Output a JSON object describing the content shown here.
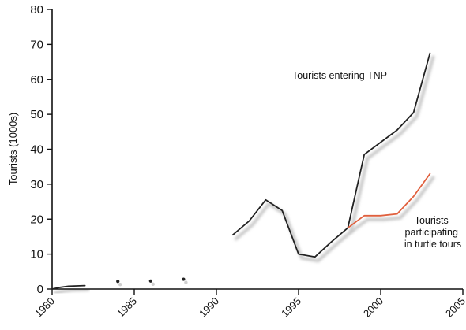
{
  "chart_data": {
    "type": "line",
    "ylabel": "Tourists (1000s)",
    "xlabel": "",
    "xlim": [
      1980,
      2005
    ],
    "ylim": [
      0,
      80
    ],
    "x_ticks": [
      1980,
      1985,
      1990,
      1995,
      2000,
      2005
    ],
    "y_ticks": [
      0,
      10,
      20,
      30,
      40,
      50,
      60,
      70,
      80
    ],
    "grid": false,
    "series": [
      {
        "name": "Tourists entering TNP",
        "color": "#222222",
        "segments": [
          [
            [
              1980,
              0
            ],
            [
              1980.5,
              0.5
            ],
            [
              1981,
              0.8
            ],
            [
              1981.5,
              0.9
            ],
            [
              1982,
              1.0
            ]
          ],
          [
            [
              1991,
              15.5
            ],
            [
              1992,
              19.5
            ],
            [
              1993,
              25.5
            ],
            [
              1994,
              22.5
            ],
            [
              1995,
              10
            ],
            [
              1996,
              9.2
            ],
            [
              1997,
              13.5
            ],
            [
              1998,
              17.5
            ],
            [
              1999,
              38.5
            ],
            [
              2000,
              42
            ],
            [
              2001,
              45.5
            ],
            [
              2002,
              50.5
            ],
            [
              2003,
              67.5
            ]
          ]
        ],
        "points": [
          [
            1984,
            2.2
          ],
          [
            1986,
            2.3
          ],
          [
            1988,
            2.8
          ]
        ]
      },
      {
        "name": "Tourists participating in turtle tours",
        "color": "#e0603e",
        "segments": [
          [
            [
              1998,
              17.5
            ],
            [
              1999,
              21
            ],
            [
              2000,
              21
            ],
            [
              2001,
              21.5
            ],
            [
              2002,
              26.5
            ],
            [
              2003,
              33
            ]
          ]
        ],
        "points": []
      }
    ],
    "annotations": [
      {
        "series": 0,
        "lines": [
          "Tourists entering TNP"
        ]
      },
      {
        "series": 1,
        "lines": [
          "Tourists",
          "participating",
          "in turtle tours"
        ]
      }
    ]
  }
}
